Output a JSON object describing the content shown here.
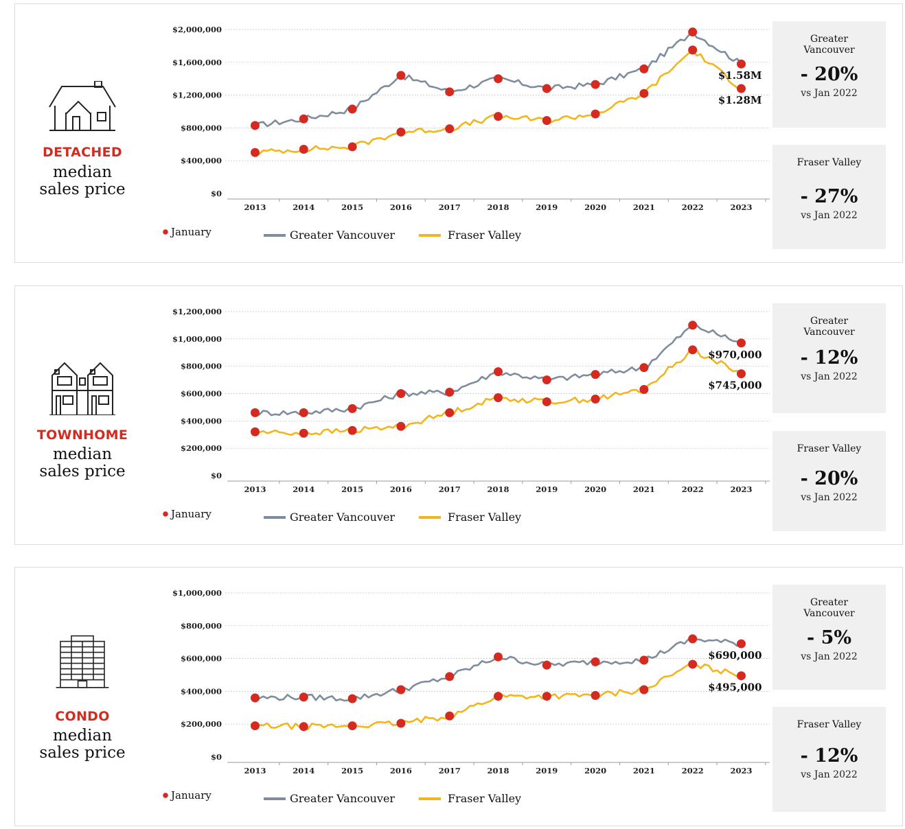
{
  "colors": {
    "gv": "#7f8c9d",
    "fv": "#f2b51b",
    "dot": "#d42a1f",
    "grid": "#bdbdbd"
  },
  "legend": {
    "january": "January",
    "gv": "Greater Vancouver",
    "fv": "Fraser Valley"
  },
  "panels": [
    {
      "category": "DETACHED",
      "subtitle": [
        "median",
        "sales price"
      ],
      "icon": "house-icon",
      "boxes": [
        {
          "title": [
            "Greater",
            "Vancouver"
          ],
          "pct": "- 20%",
          "vs": "vs Jan 2022"
        },
        {
          "title": [
            "Fraser Valley"
          ],
          "pct": "- 27%",
          "vs": "vs Jan 2022"
        }
      ],
      "chart_data": {
        "type": "line",
        "x": [
          "2013",
          "2014",
          "2015",
          "2016",
          "2017",
          "2018",
          "2019",
          "2020",
          "2021",
          "2022",
          "2023"
        ],
        "ylim": [
          0,
          2000000
        ],
        "yticks": [
          0,
          400000,
          800000,
          1200000,
          1600000,
          2000000
        ],
        "ytick_labels": [
          "$0",
          "$400,000",
          "$800,000",
          "$1,200,000",
          "$1,600,000",
          "$2,000,000"
        ],
        "series": [
          {
            "name": "Greater Vancouver",
            "january": [
              830000,
              910000,
              1030000,
              1440000,
              1240000,
              1400000,
              1280000,
              1330000,
              1520000,
              1970000,
              1580000
            ]
          },
          {
            "name": "Fraser Valley",
            "january": [
              500000,
              540000,
              570000,
              750000,
              790000,
              940000,
              890000,
              970000,
              1220000,
              1750000,
              1280000
            ]
          }
        ],
        "end_labels": [
          "$1.58M",
          "$1.28M"
        ]
      }
    },
    {
      "category": "TOWNHOME",
      "subtitle": [
        "median",
        "sales price"
      ],
      "icon": "townhouse-icon",
      "boxes": [
        {
          "title": [
            "Greater",
            "Vancouver"
          ],
          "pct": "- 12%",
          "vs": "vs Jan 2022"
        },
        {
          "title": [
            "Fraser Valley"
          ],
          "pct": "- 20%",
          "vs": "vs Jan 2022"
        }
      ],
      "chart_data": {
        "type": "line",
        "x": [
          "2013",
          "2014",
          "2015",
          "2016",
          "2017",
          "2018",
          "2019",
          "2020",
          "2021",
          "2022",
          "2023"
        ],
        "ylim": [
          0,
          1200000
        ],
        "yticks": [
          0,
          200000,
          400000,
          600000,
          800000,
          1000000,
          1200000
        ],
        "ytick_labels": [
          "$0",
          "$200,000",
          "$400,000",
          "$600,000",
          "$800,000",
          "$1,000,000",
          "$1,200,000"
        ],
        "series": [
          {
            "name": "Greater Vancouver",
            "january": [
              460000,
              460000,
              490000,
              600000,
              610000,
              760000,
              700000,
              740000,
              790000,
              1100000,
              970000
            ]
          },
          {
            "name": "Fraser Valley",
            "january": [
              320000,
              310000,
              330000,
              360000,
              460000,
              570000,
              540000,
              560000,
              630000,
              920000,
              745000
            ]
          }
        ],
        "end_labels": [
          "$970,000",
          "$745,000"
        ]
      }
    },
    {
      "category": "CONDO",
      "subtitle": [
        "median",
        "sales price"
      ],
      "icon": "condo-building-icon",
      "boxes": [
        {
          "title": [
            "Greater",
            "Vancouver"
          ],
          "pct": "- 5%",
          "vs": "vs Jan 2022"
        },
        {
          "title": [
            "Fraser Valley"
          ],
          "pct": "- 12%",
          "vs": "vs Jan 2022"
        }
      ],
      "chart_data": {
        "type": "line",
        "x": [
          "2013",
          "2014",
          "2015",
          "2016",
          "2017",
          "2018",
          "2019",
          "2020",
          "2021",
          "2022",
          "2023"
        ],
        "ylim": [
          0,
          1000000
        ],
        "yticks": [
          0,
          200000,
          400000,
          600000,
          800000,
          1000000
        ],
        "ytick_labels": [
          "$0",
          "$200,000",
          "$400,000",
          "$600,000",
          "$800,000",
          "$1,000,000"
        ],
        "series": [
          {
            "name": "Greater Vancouver",
            "january": [
              360000,
              365000,
              355000,
              410000,
              490000,
              610000,
              560000,
              580000,
              590000,
              720000,
              690000
            ]
          },
          {
            "name": "Fraser Valley",
            "january": [
              190000,
              185000,
              190000,
              205000,
              250000,
              370000,
              370000,
              375000,
              410000,
              565000,
              495000
            ]
          }
        ],
        "end_labels": [
          "$690,000",
          "$495,000"
        ]
      }
    }
  ]
}
